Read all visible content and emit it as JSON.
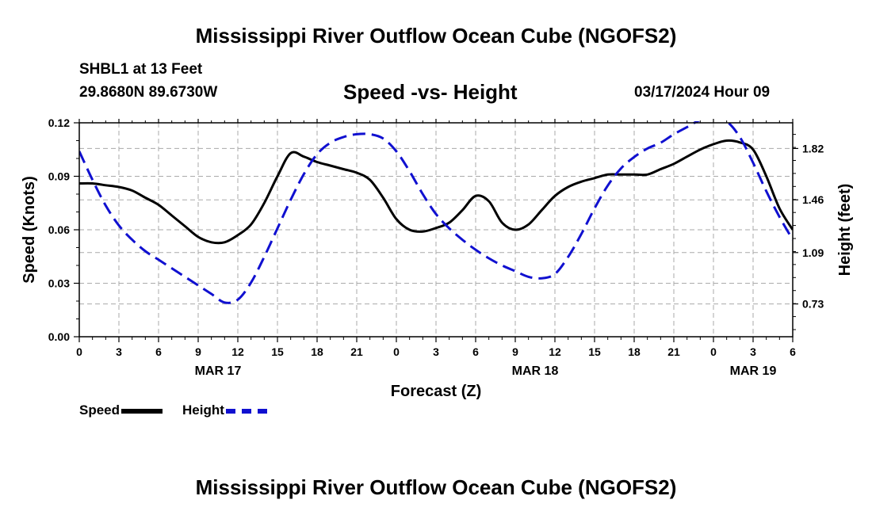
{
  "header": {
    "title": "Mississippi River Outflow Ocean Cube (NGOFS2)",
    "station": "SHBL1 at 13 Feet",
    "coords": "29.8680N  89.6730W",
    "subtitle": "Speed -vs- Height",
    "datetime": "03/17/2024 Hour 09"
  },
  "footer": {
    "title": "Mississippi River Outflow Ocean Cube (NGOFS2)"
  },
  "legend": {
    "speed": "Speed",
    "height": "Height"
  },
  "colors": {
    "speed": "#000000",
    "height": "#1010d0",
    "grid": "#aaaaaa"
  },
  "chart_data": {
    "type": "line",
    "title": "Speed -vs- Height",
    "xlabel": "Forecast (Z)",
    "ylabel": "Speed (Knots)",
    "y2label": "Height (feet)",
    "x_range_hours": [
      0,
      54
    ],
    "x_tick_hours": [
      0,
      3,
      6,
      9,
      12,
      15,
      18,
      21,
      24,
      27,
      30,
      33,
      36,
      39,
      42,
      45,
      48,
      51,
      54
    ],
    "x_tick_labels": [
      "0",
      "3",
      "6",
      "9",
      "12",
      "15",
      "18",
      "21",
      "0",
      "3",
      "6",
      "9",
      "12",
      "15",
      "18",
      "21",
      "0",
      "3",
      "6"
    ],
    "date_labels": [
      {
        "hour": 10.5,
        "label": "MAR 17"
      },
      {
        "hour": 34.5,
        "label": "MAR 18"
      },
      {
        "hour": 51,
        "label": "MAR 19"
      }
    ],
    "ylim": [
      0,
      0.12
    ],
    "y_ticks": [
      0,
      0.03,
      0.06,
      0.09,
      0.12
    ],
    "y_tick_labels": [
      "0.00",
      "0.03",
      "0.06",
      "0.09",
      "0.12"
    ],
    "y2lim": [
      0.5,
      2.0
    ],
    "y2_ticks": [
      0.73,
      1.09,
      1.46,
      1.82
    ],
    "y2_tick_labels": [
      "0.73",
      "1.09",
      "1.46",
      "1.82"
    ],
    "grid": true,
    "series": [
      {
        "name": "Speed",
        "axis": "left",
        "x": [
          0,
          1,
          2,
          3,
          4,
          5,
          6,
          7,
          8,
          9,
          10,
          11,
          12,
          13,
          14,
          15,
          16,
          17,
          18,
          19,
          20,
          21,
          22,
          23,
          24,
          25,
          26,
          27,
          28,
          29,
          30,
          31,
          32,
          33,
          34,
          35,
          36,
          37,
          38,
          39,
          40,
          41,
          42,
          43,
          44,
          45,
          46,
          47,
          48,
          49,
          50,
          51,
          52,
          53,
          54
        ],
        "values": [
          0.086,
          0.086,
          0.085,
          0.084,
          0.082,
          0.078,
          0.074,
          0.068,
          0.062,
          0.056,
          0.053,
          0.053,
          0.057,
          0.063,
          0.075,
          0.09,
          0.103,
          0.101,
          0.098,
          0.096,
          0.094,
          0.092,
          0.088,
          0.078,
          0.066,
          0.06,
          0.059,
          0.061,
          0.064,
          0.071,
          0.079,
          0.076,
          0.064,
          0.06,
          0.063,
          0.071,
          0.079,
          0.084,
          0.087,
          0.089,
          0.091,
          0.091,
          0.091,
          0.091,
          0.094,
          0.097,
          0.101,
          0.105,
          0.108,
          0.11,
          0.109,
          0.105,
          0.09,
          0.072,
          0.06
        ]
      },
      {
        "name": "Height",
        "axis": "right",
        "x": [
          0,
          1,
          2,
          3,
          4,
          5,
          6,
          7,
          8,
          9,
          10,
          11,
          12,
          13,
          14,
          15,
          16,
          17,
          18,
          19,
          20,
          21,
          22,
          23,
          24,
          25,
          26,
          27,
          28,
          29,
          30,
          31,
          32,
          33,
          34,
          35,
          36,
          37,
          38,
          39,
          40,
          41,
          42,
          43,
          44,
          45,
          46,
          47,
          48,
          49,
          50,
          51,
          52,
          53,
          54
        ],
        "values": [
          1.8,
          1.6,
          1.42,
          1.28,
          1.18,
          1.1,
          1.04,
          0.98,
          0.92,
          0.86,
          0.8,
          0.74,
          0.76,
          0.88,
          1.06,
          1.26,
          1.46,
          1.64,
          1.78,
          1.86,
          1.9,
          1.92,
          1.92,
          1.89,
          1.8,
          1.66,
          1.5,
          1.36,
          1.26,
          1.18,
          1.11,
          1.05,
          1.0,
          0.96,
          0.92,
          0.91,
          0.94,
          1.06,
          1.22,
          1.4,
          1.56,
          1.68,
          1.76,
          1.82,
          1.86,
          1.92,
          1.97,
          2.02,
          2.04,
          2.01,
          1.9,
          1.72,
          1.52,
          1.34,
          1.18
        ]
      }
    ]
  }
}
